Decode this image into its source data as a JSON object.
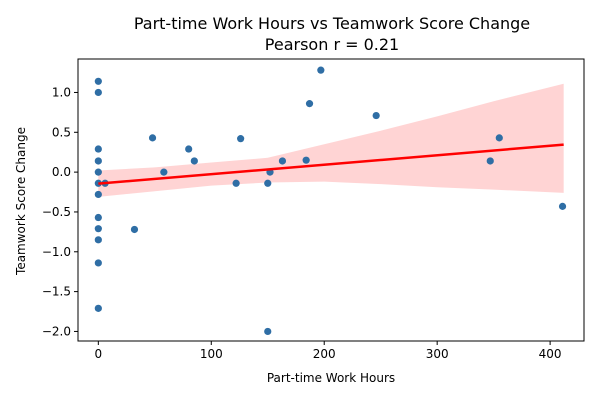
{
  "chart_data": {
    "type": "scatter",
    "title": "Part-time Work Hours vs Teamwork Score Change",
    "subtitle": "Pearson r = 0.21",
    "xlabel": "Part-time Work Hours",
    "ylabel": "Teamwork Score Change",
    "xlim": [
      -18,
      430
    ],
    "ylim": [
      -2.12,
      1.42
    ],
    "xticks": [
      0,
      100,
      200,
      300,
      400
    ],
    "yticks": [
      -2.0,
      -1.5,
      -1.0,
      -0.5,
      0.0,
      0.5,
      1.0
    ],
    "xtick_labels": [
      "0",
      "100",
      "200",
      "300",
      "400"
    ],
    "ytick_labels": [
      "−2.0",
      "−1.5",
      "−1.0",
      "−0.5",
      "0.0",
      "0.5",
      "1.0"
    ],
    "grid": false,
    "points": [
      {
        "x": 0,
        "y": 1.14
      },
      {
        "x": 0,
        "y": 1.0
      },
      {
        "x": 0,
        "y": 0.29
      },
      {
        "x": 0,
        "y": 0.14
      },
      {
        "x": 0,
        "y": 0.0
      },
      {
        "x": 0,
        "y": -0.14
      },
      {
        "x": 0,
        "y": -0.28
      },
      {
        "x": 0,
        "y": -0.57
      },
      {
        "x": 0,
        "y": -0.71
      },
      {
        "x": 0,
        "y": -0.85
      },
      {
        "x": 0,
        "y": -1.14
      },
      {
        "x": 0,
        "y": -1.71
      },
      {
        "x": 6,
        "y": -0.14
      },
      {
        "x": 32,
        "y": -0.72
      },
      {
        "x": 48,
        "y": 0.43
      },
      {
        "x": 58,
        "y": 0.0
      },
      {
        "x": 80,
        "y": 0.29
      },
      {
        "x": 85,
        "y": 0.14
      },
      {
        "x": 122,
        "y": -0.14
      },
      {
        "x": 126,
        "y": 0.42
      },
      {
        "x": 150,
        "y": -0.14
      },
      {
        "x": 150,
        "y": -2.0
      },
      {
        "x": 152,
        "y": 0.0
      },
      {
        "x": 163,
        "y": 0.14
      },
      {
        "x": 184,
        "y": 0.15
      },
      {
        "x": 187,
        "y": 0.86
      },
      {
        "x": 197,
        "y": 1.28
      },
      {
        "x": 246,
        "y": 0.71
      },
      {
        "x": 347,
        "y": 0.14
      },
      {
        "x": 355,
        "y": 0.43
      },
      {
        "x": 411,
        "y": -0.43
      }
    ],
    "regression": {
      "x0": 0,
      "y0": -0.145,
      "x1": 412,
      "y1": 0.345
    },
    "ci_band": [
      {
        "x": 0,
        "lo": -0.31,
        "hi": 0.02
      },
      {
        "x": 50,
        "lo": -0.24,
        "hi": 0.06
      },
      {
        "x": 100,
        "lo": -0.17,
        "hi": 0.12
      },
      {
        "x": 150,
        "lo": -0.13,
        "hi": 0.18
      },
      {
        "x": 200,
        "lo": -0.12,
        "hi": 0.35
      },
      {
        "x": 250,
        "lo": -0.15,
        "hi": 0.52
      },
      {
        "x": 300,
        "lo": -0.19,
        "hi": 0.7
      },
      {
        "x": 350,
        "lo": -0.22,
        "hi": 0.89
      },
      {
        "x": 412,
        "lo": -0.26,
        "hi": 1.11
      }
    ],
    "colors": {
      "points": "#2f6ea5",
      "regression": "#ff0000",
      "ci": "#ffcccc"
    }
  }
}
